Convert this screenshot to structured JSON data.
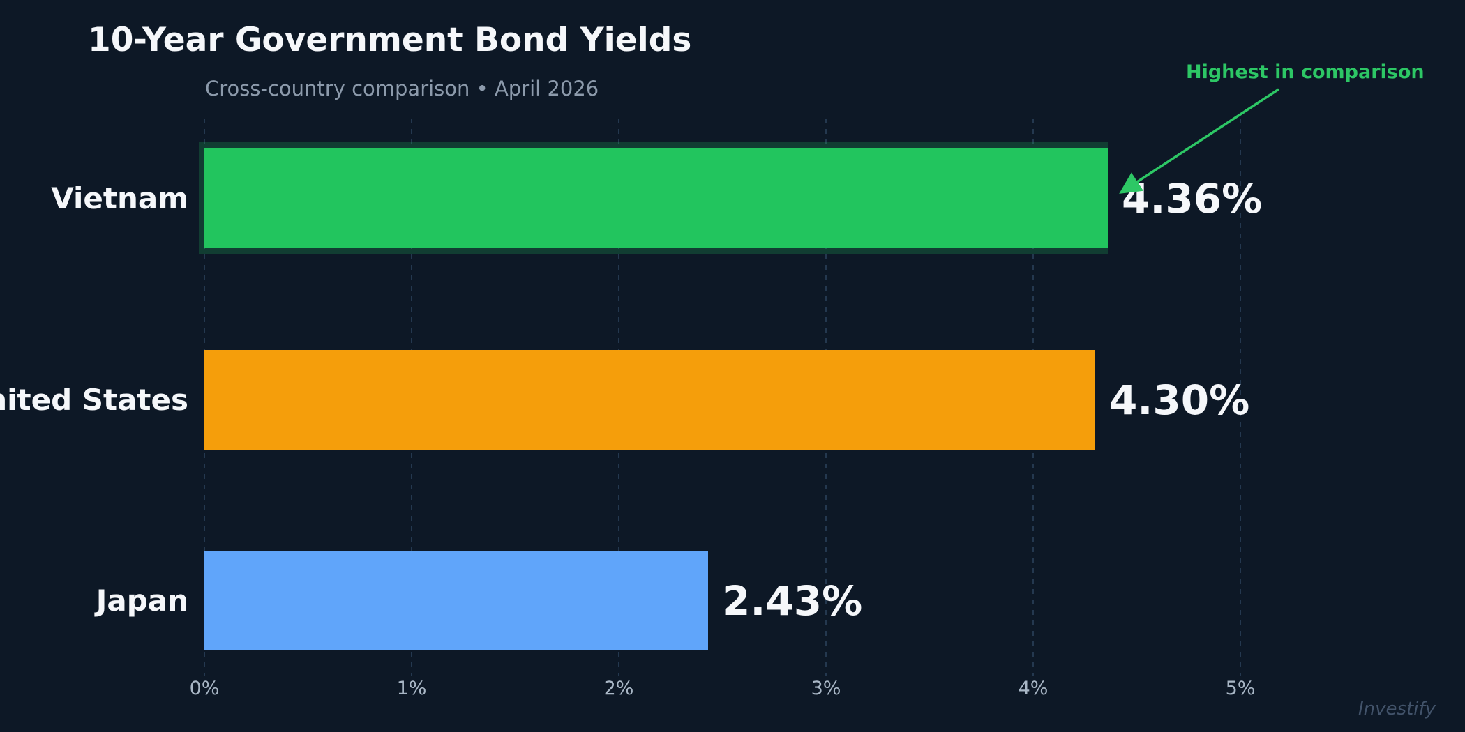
{
  "header": {
    "title": "10-Year Government Bond Yields",
    "subtitle": "Cross-country comparison  •  April 2026"
  },
  "annotation": {
    "label": "Highest in comparison",
    "color": "#2dc765"
  },
  "watermark": "Investify",
  "colors": {
    "background": "#0d1826",
    "gridline": "#24384f",
    "title_text": "#f5f7fa",
    "subtitle_text": "#8c9aab",
    "tick_text": "#a9b7c6",
    "highlight_halo": "rgba(34,197,94,0.22)"
  },
  "chart_data": {
    "type": "bar",
    "orientation": "horizontal",
    "title": "10-Year Government Bond Yields",
    "subtitle": "Cross-country comparison • April 2026",
    "categories": [
      "Vietnam",
      "United States",
      "Japan"
    ],
    "values": [
      4.36,
      4.3,
      2.43
    ],
    "value_labels": [
      "4.36%",
      "4.30%",
      "2.43%"
    ],
    "bar_colors": [
      "#22c55e",
      "#f59e0b",
      "#60a5fa"
    ],
    "x_tick_labels": [
      "0%",
      "1%",
      "2%",
      "3%",
      "4%",
      "5%"
    ],
    "x_tick_values": [
      0,
      1,
      2,
      3,
      4,
      5
    ],
    "xlim": [
      0,
      5.6
    ],
    "xlabel": "",
    "ylabel": "",
    "grid": "dashed-vertical",
    "legend": "none",
    "highlight_index": 0,
    "annotation": {
      "text": "Highest in comparison",
      "target": "Vietnam"
    }
  }
}
